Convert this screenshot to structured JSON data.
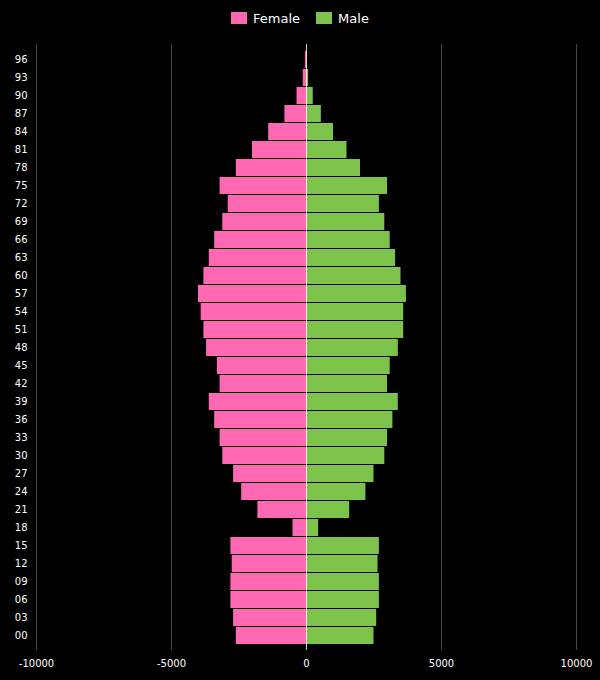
{
  "chart_data": {
    "type": "bar",
    "orientation": "horizontal",
    "categories": [
      "00",
      "03",
      "06",
      "09",
      "12",
      "15",
      "18",
      "21",
      "24",
      "27",
      "30",
      "33",
      "36",
      "39",
      "42",
      "45",
      "48",
      "51",
      "54",
      "57",
      "60",
      "63",
      "66",
      "69",
      "72",
      "75",
      "78",
      "81",
      "84",
      "87",
      "90",
      "93",
      "96"
    ],
    "series": [
      {
        "name": "Female",
        "color": "#ff69b4",
        "values": [
          -2600,
          -2700,
          -2800,
          -2800,
          -2750,
          -2800,
          -500,
          -1800,
          -2400,
          -2700,
          -3100,
          -3200,
          -3400,
          -3600,
          -3200,
          -3300,
          -3700,
          -3800,
          -3900,
          -4000,
          -3800,
          -3600,
          -3400,
          -3100,
          -2900,
          -3200,
          -2600,
          -2000,
          -1400,
          -800,
          -350,
          -120,
          -40
        ]
      },
      {
        "name": "Male",
        "color": "#7dc24b",
        "values": [
          2500,
          2600,
          2700,
          2700,
          2650,
          2700,
          450,
          1600,
          2200,
          2500,
          2900,
          3000,
          3200,
          3400,
          3000,
          3100,
          3400,
          3600,
          3600,
          3700,
          3500,
          3300,
          3100,
          2900,
          2700,
          3000,
          2000,
          1500,
          1000,
          550,
          250,
          80,
          15
        ]
      }
    ],
    "xlim": [
      -10000,
      10000
    ],
    "xticks": [
      -10000,
      -5000,
      0,
      5000,
      10000
    ],
    "grid": true,
    "legend": "top"
  }
}
